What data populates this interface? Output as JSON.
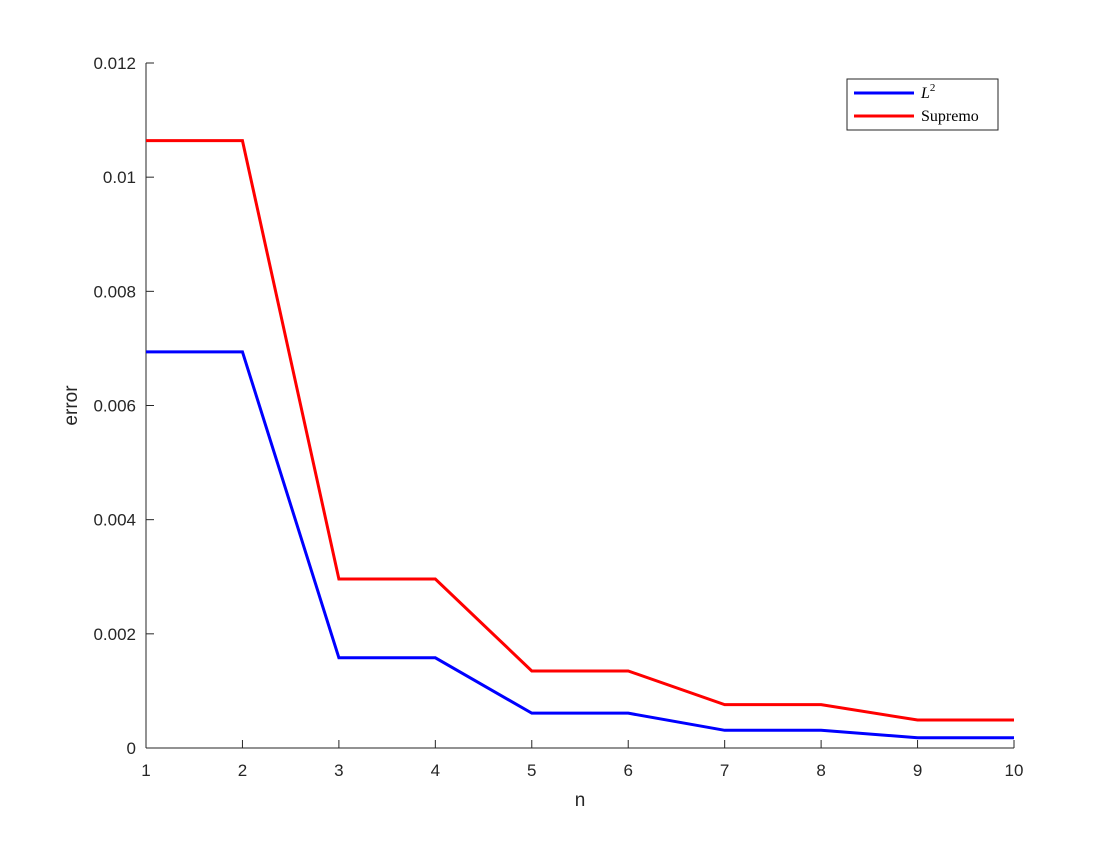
{
  "chart_data": {
    "type": "line",
    "title": "",
    "xlabel": "n",
    "ylabel": "error",
    "xlim": [
      1,
      10
    ],
    "ylim": [
      0,
      0.012
    ],
    "x": [
      1,
      2,
      3,
      4,
      5,
      6,
      7,
      8,
      9,
      10
    ],
    "xticks": [
      "1",
      "2",
      "3",
      "4",
      "5",
      "6",
      "7",
      "8",
      "9",
      "10"
    ],
    "yticks": [
      "0",
      "0.002",
      "0.004",
      "0.006",
      "0.008",
      "0.01",
      "0.012"
    ],
    "grid": false,
    "legend_position": "top-right",
    "series": [
      {
        "name": "L",
        "name_superscript": "2",
        "color": "#0000ff",
        "values": [
          0.00694,
          0.00694,
          0.00158,
          0.00158,
          0.00061,
          0.00061,
          0.00031,
          0.00031,
          0.00018,
          0.00018
        ]
      },
      {
        "name": "Supremo",
        "color": "#ff0000",
        "values": [
          0.01064,
          0.01064,
          0.00296,
          0.00296,
          0.00135,
          0.00135,
          0.00076,
          0.00076,
          0.00049,
          0.00049
        ]
      }
    ]
  }
}
